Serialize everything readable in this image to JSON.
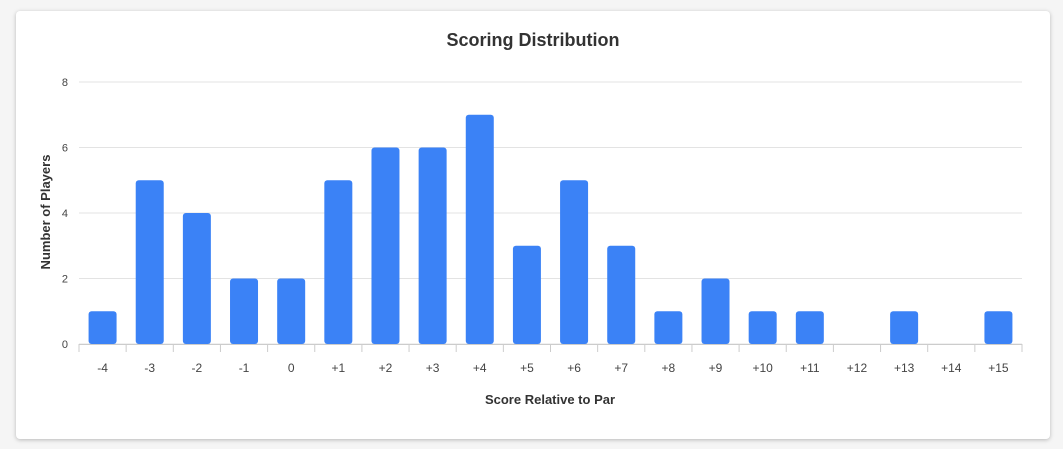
{
  "chart_data": {
    "type": "bar",
    "title": "Scoring Distribution",
    "xlabel": "Score Relative to Par",
    "ylabel": "Number of Players",
    "categories": [
      "-4",
      "-3",
      "-2",
      "-1",
      "0",
      "+1",
      "+2",
      "+3",
      "+4",
      "+5",
      "+6",
      "+7",
      "+8",
      "+9",
      "+10",
      "+11",
      "+12",
      "+13",
      "+14",
      "+15"
    ],
    "values": [
      1,
      5,
      4,
      2,
      2,
      5,
      6,
      6,
      7,
      3,
      5,
      3,
      1,
      2,
      1,
      1,
      0,
      1,
      0,
      1
    ],
    "ylim": [
      0,
      8
    ],
    "yticks": [
      "0",
      "2",
      "4",
      "6",
      "8"
    ],
    "grid": true,
    "bar_color": "#3b82f6"
  }
}
